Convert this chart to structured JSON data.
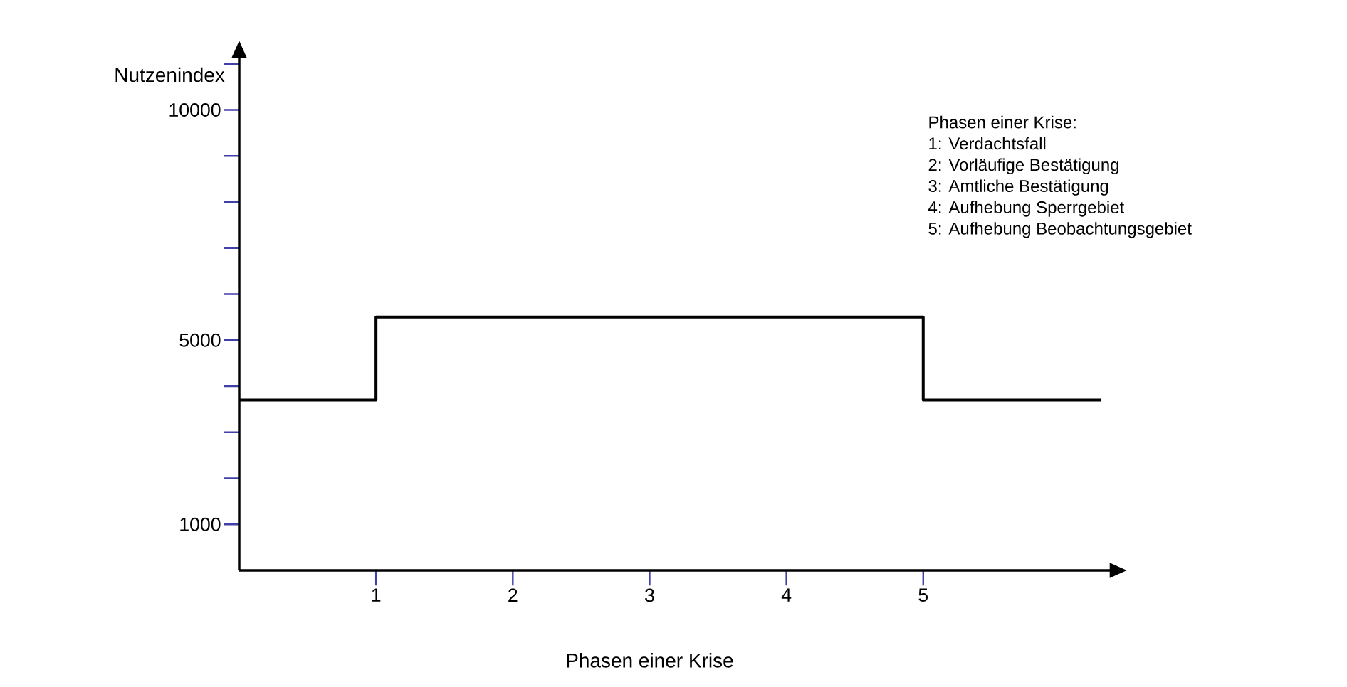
{
  "chart_data": {
    "type": "step",
    "xlabel": "Phasen einer Krise",
    "ylabel": "Nutzenindex",
    "series": [
      {
        "color": "#000000",
        "x": [
          0,
          1,
          5,
          6.3
        ],
        "values": [
          3700,
          5500,
          3700,
          3700
        ]
      }
    ],
    "xlim": [
      0,
      6.37
    ],
    "ylim": [
      0,
      11150
    ],
    "xticks": [
      1,
      2,
      3,
      4,
      5
    ],
    "yticks": [
      1000,
      {
        "value": 2000,
        "label": null
      },
      {
        "value": 3000,
        "label": null
      },
      {
        "value": 4000,
        "label": null
      },
      5000,
      {
        "value": 6000,
        "label": null
      },
      {
        "value": 7000,
        "label": null
      },
      {
        "value": 8000,
        "label": null
      },
      {
        "value": 9000,
        "label": null
      },
      10000,
      {
        "value": 11000,
        "label": null
      }
    ],
    "annotations": [
      "Phasen einer Krise:",
      "1: Verdachtsfall",
      "2: Vorläufige Bestätigung",
      "3: Amtliche Bestätigung",
      "4: Aufhebung Sperrgebiet",
      "5: Aufhebung Beobachtungsgebiet"
    ],
    "grid": false,
    "marker": "none",
    "line_style": "solid"
  }
}
